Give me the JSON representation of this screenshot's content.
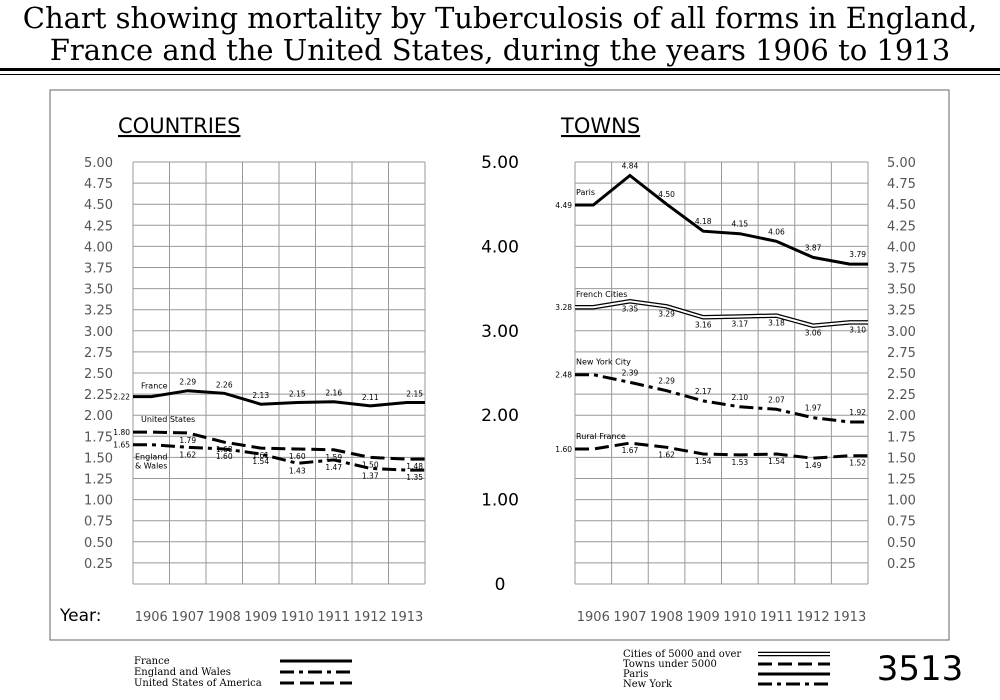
{
  "title_line1": "Chart showing mortality by Tuberculosis of all forms in England,",
  "title_line2": "France and the United States, during the years 1906 to 1913",
  "plate_number": "3513",
  "year_label": "Year:",
  "chart_data": [
    {
      "type": "line",
      "title": "COUNTRIES",
      "x": [
        "1906",
        "1907",
        "1908",
        "1909",
        "1910",
        "1911",
        "1912",
        "1913"
      ],
      "ylim": [
        0,
        5
      ],
      "yticks": [
        "5.00",
        "4.75",
        "4.50",
        "4.25",
        "4.00",
        "3.75",
        "3.50",
        "3.25",
        "3.00",
        "2.75",
        "2.50",
        "2.25",
        "2.00",
        "1.75",
        "1.50",
        "1.25",
        "1.00",
        "0.75",
        "0.50",
        "0.25"
      ],
      "grid": true,
      "series": [
        {
          "name": "France",
          "style": "solid",
          "values": [
            2.22,
            2.29,
            2.26,
            2.13,
            2.15,
            2.16,
            2.11,
            2.15
          ],
          "labels": [
            "2.22",
            "2.29",
            "2.26",
            "2.13",
            "2.15",
            "2.16",
            "2.11",
            "2.15"
          ]
        },
        {
          "name": "United States",
          "style": "dashed",
          "values": [
            1.8,
            1.79,
            1.68,
            1.61,
            1.6,
            1.59,
            1.5,
            1.48
          ],
          "labels": [
            "1.80",
            "1.79",
            "1.68",
            "1.61",
            "1.60",
            "1.59",
            "1.50",
            "1.48"
          ]
        },
        {
          "name": "England & Wales",
          "style": "dashdot",
          "values": [
            1.65,
            1.62,
            1.6,
            1.54,
            1.43,
            1.47,
            1.37,
            1.35
          ],
          "labels": [
            "1.65",
            "1.62",
            "1.60",
            "1.54",
            "1.43",
            "1.47",
            "1.37",
            "1.35"
          ]
        }
      ]
    },
    {
      "type": "line",
      "title": "TOWNS",
      "x": [
        "1906",
        "1907",
        "1908",
        "1909",
        "1910",
        "1911",
        "1912",
        "1913"
      ],
      "ylim": [
        0,
        5
      ],
      "yticks_left": [
        "5.00",
        "4.00",
        "3.00",
        "2.00",
        "1.00",
        "0"
      ],
      "yticks_right": [
        "5.00",
        "4.75",
        "4.50",
        "4.25",
        "4.00",
        "3.75",
        "3.50",
        "3.25",
        "3.00",
        "2.75",
        "2.50",
        "2.25",
        "2.00",
        "1.75",
        "1.50",
        "1.25",
        "1.00",
        "0.75",
        "0.50",
        "0.25"
      ],
      "grid": true,
      "series": [
        {
          "name": "Paris",
          "style": "solid",
          "values": [
            4.49,
            4.84,
            4.5,
            4.18,
            4.15,
            4.06,
            3.87,
            3.79
          ],
          "labels": [
            "4.49",
            "4.84",
            "4.50",
            "4.18",
            "4.15",
            "4.06",
            "3.87",
            "3.79"
          ]
        },
        {
          "name": "French Cities",
          "style": "double",
          "values": [
            3.28,
            3.35,
            3.29,
            3.16,
            3.17,
            3.18,
            3.06,
            3.1
          ],
          "labels": [
            "3.28",
            "3.35",
            "3.29",
            "3.16",
            "3.17",
            "3.18",
            "3.06",
            "3.10"
          ]
        },
        {
          "name": "New York City",
          "style": "dashdot",
          "values": [
            2.48,
            2.39,
            2.29,
            2.17,
            2.1,
            2.07,
            1.97,
            1.92
          ],
          "labels": [
            "2.48",
            "2.39",
            "2.29",
            "2.17",
            "2.10",
            "2.07",
            "1.97",
            "1.92"
          ]
        },
        {
          "name": "Rural France",
          "style": "dashed",
          "values": [
            1.6,
            1.67,
            1.62,
            1.54,
            1.53,
            1.54,
            1.49,
            1.52
          ],
          "labels": [
            "1.60",
            "1.67",
            "1.62",
            "1.54",
            "1.53",
            "1.54",
            "1.49",
            "1.52"
          ]
        }
      ]
    }
  ],
  "legend_left": [
    {
      "label": "France",
      "style": "solid"
    },
    {
      "label": "England and Wales",
      "style": "dashdot"
    },
    {
      "label": "United States of America",
      "style": "dashed"
    }
  ],
  "legend_right": [
    {
      "label": "Cities of 5000 and over",
      "style": "double"
    },
    {
      "label": "Towns under 5000",
      "style": "dashed"
    },
    {
      "label": "Paris",
      "style": "solid"
    },
    {
      "label": "New York",
      "style": "dashdot"
    }
  ]
}
